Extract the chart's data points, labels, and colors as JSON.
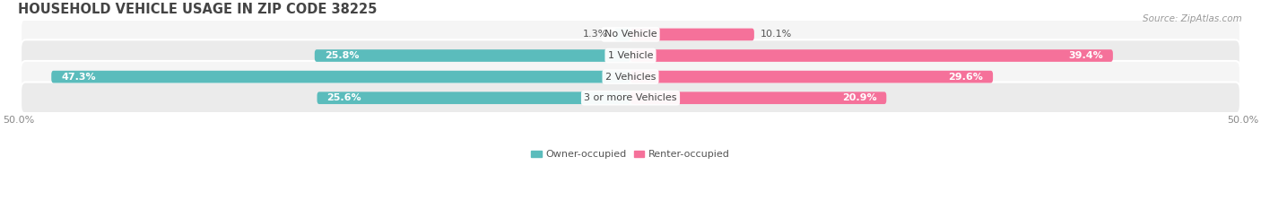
{
  "title": "HOUSEHOLD VEHICLE USAGE IN ZIP CODE 38225",
  "source": "Source: ZipAtlas.com",
  "categories": [
    "No Vehicle",
    "1 Vehicle",
    "2 Vehicles",
    "3 or more Vehicles"
  ],
  "owner_values": [
    1.3,
    25.8,
    47.3,
    25.6
  ],
  "renter_values": [
    10.1,
    39.4,
    29.6,
    20.9
  ],
  "owner_color": "#5bbcbc",
  "renter_color": "#f5719a",
  "row_bg_odd": "#f5f5f5",
  "row_bg_even": "#ebebeb",
  "owner_label": "Owner-occupied",
  "renter_label": "Renter-occupied",
  "xlim": [
    -50,
    50
  ],
  "bar_height": 0.58,
  "title_fontsize": 10.5,
  "source_fontsize": 7.5,
  "label_fontsize": 8,
  "tick_fontsize": 8,
  "value_fontsize": 8
}
